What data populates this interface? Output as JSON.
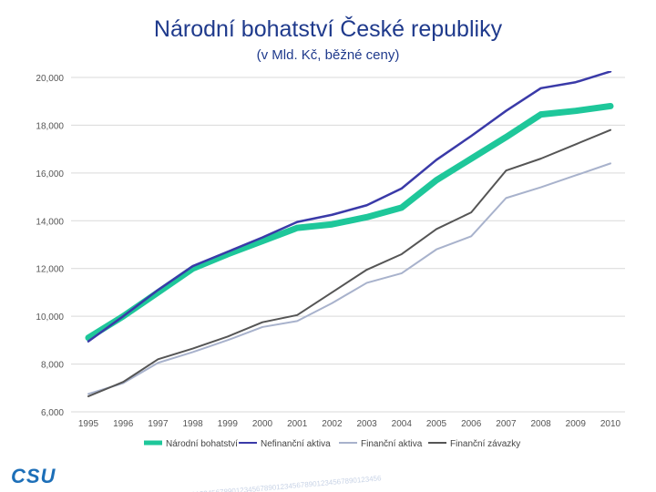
{
  "header": {
    "title": "Národní bohatství České republiky",
    "subtitle": "(v Mld. Kč, běžné ceny)"
  },
  "footer": {
    "logo": "CSU",
    "watermark": "1234567890123456789012345678901234567890123456789012345678901234567890123456"
  },
  "chart_data": {
    "type": "line",
    "x": [
      1995,
      1996,
      1997,
      1998,
      1999,
      2000,
      2001,
      2002,
      2003,
      2004,
      2005,
      2006,
      2007,
      2008,
      2009,
      2010
    ],
    "x_tick_labels": [
      "1995",
      "1996",
      "1997",
      "1998",
      "1999",
      "2000",
      "2001",
      "2002",
      "2003",
      "2004",
      "2005",
      "2006",
      "2007",
      "2008",
      "2009",
      "2010"
    ],
    "ylim": [
      6000,
      20000
    ],
    "y_ticks": [
      6000,
      8000,
      10000,
      12000,
      14000,
      16000,
      18000,
      20000
    ],
    "y_tick_labels": [
      "6,000",
      "8,000",
      "10,000",
      "12,000",
      "14,000",
      "16,000",
      "18,000",
      "20,000"
    ],
    "grid": true,
    "legend_position": "bottom",
    "series": [
      {
        "name": "Národní bohatství",
        "color": "#1ec79a",
        "values": [
          9100,
          10000,
          11000,
          12000,
          12600,
          13150,
          13700,
          13850,
          14150,
          14550,
          15700,
          16600,
          17500,
          18450,
          18600,
          18800
        ]
      },
      {
        "name": "Nefinanční aktiva",
        "color": "#3a3aa8",
        "values": [
          8950,
          10000,
          11100,
          12100,
          12700,
          13300,
          13950,
          14250,
          14650,
          15350,
          16550,
          17550,
          18600,
          19550,
          19800,
          20250
        ]
      },
      {
        "name": "Finanční aktiva",
        "color": "#a8b2cc",
        "values": [
          6750,
          7200,
          8050,
          8500,
          9000,
          9550,
          9800,
          10550,
          11400,
          11800,
          12800,
          13350,
          14950,
          15400,
          15900,
          16400
        ]
      },
      {
        "name": "Finanční závazky",
        "color": "#555555",
        "values": [
          6650,
          7250,
          8200,
          8650,
          9150,
          9750,
          10050,
          11000,
          11950,
          12600,
          13650,
          14350,
          16100,
          16600,
          17200,
          17800
        ]
      }
    ]
  }
}
